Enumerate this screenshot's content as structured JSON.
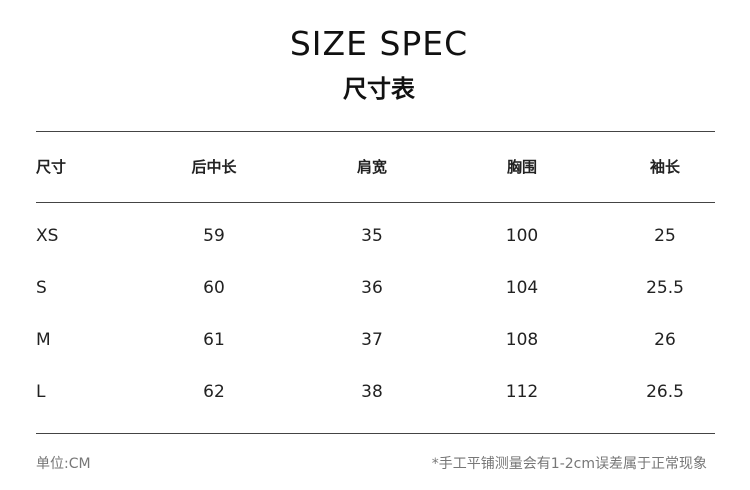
{
  "title": "SIZE SPEC",
  "subtitle": "尺寸表",
  "table": {
    "headers": [
      "尺寸",
      "后中长",
      "肩宽",
      "胸围",
      "袖长"
    ],
    "rows": [
      [
        "XS",
        "59",
        "35",
        "100",
        "25"
      ],
      [
        "S",
        "60",
        "36",
        "104",
        "25.5"
      ],
      [
        "M",
        "61",
        "37",
        "108",
        "26"
      ],
      [
        "L",
        "62",
        "38",
        "112",
        "26.5"
      ]
    ]
  },
  "footer": {
    "unit": "单位:CM",
    "note": "*手工平铺测量会有1-2cm误差属于正常现象"
  }
}
